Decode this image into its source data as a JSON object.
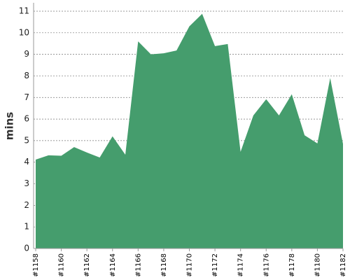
{
  "chart_data": {
    "type": "area",
    "y_label": "mins",
    "categories": [
      "#1158",
      null,
      "#1160",
      null,
      "#1162",
      null,
      "#1164",
      null,
      "#1166",
      null,
      "#1168",
      null,
      "#1170",
      null,
      "#1172",
      null,
      "#1174",
      null,
      "#1176",
      null,
      "#1178",
      null,
      "#1180",
      null,
      "#1182"
    ],
    "values": [
      4.12,
      4.32,
      4.3,
      4.7,
      4.45,
      4.22,
      5.2,
      4.35,
      9.6,
      9.0,
      9.05,
      9.18,
      10.3,
      10.88,
      9.38,
      9.48,
      4.48,
      6.17,
      6.92,
      6.17,
      7.15,
      5.25,
      4.87,
      7.9,
      4.85
    ],
    "color": "#459d6d",
    "ylim": [
      0,
      11
    ],
    "yticks": [
      0,
      1,
      2,
      3,
      4,
      5,
      6,
      7,
      8,
      9,
      10,
      11
    ],
    "grid": true
  }
}
